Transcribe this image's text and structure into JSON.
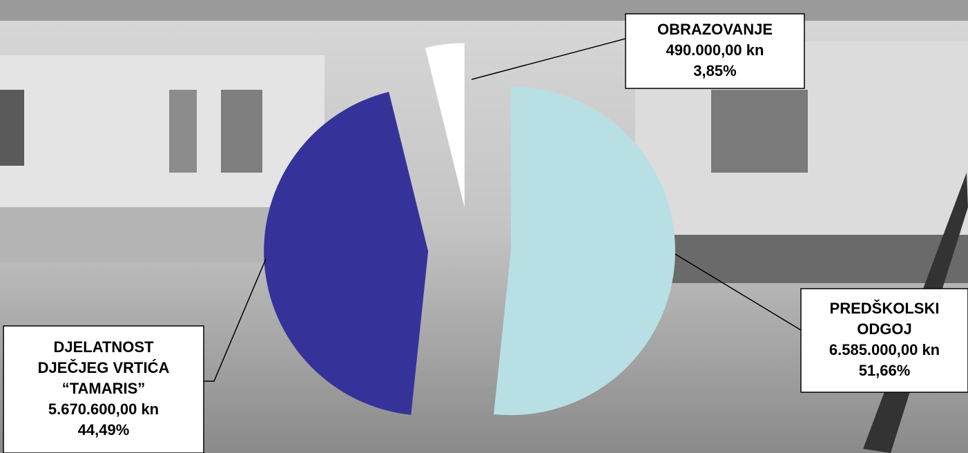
{
  "chart_data": {
    "type": "pie",
    "categories": [
      [
        "PREDŠKOLSKI",
        "ODGOJ"
      ],
      [
        "DJELATNOST",
        "DJEČJEG VRTIĆA",
        "“TAMARIS”"
      ],
      [
        "OBRAZOVANJE"
      ]
    ],
    "values": [
      6585000,
      5670600,
      490000
    ],
    "value_labels": [
      "6.585.000,00 kn",
      "5.670.600,00 kn",
      "490.000,00 kn"
    ],
    "percents": [
      51.66,
      44.49,
      3.85
    ],
    "percent_labels": [
      "51,66%",
      "44,49%",
      "3,85%"
    ],
    "colors": [
      "#b8e0e4",
      "#35339a",
      "#ffffff"
    ]
  }
}
